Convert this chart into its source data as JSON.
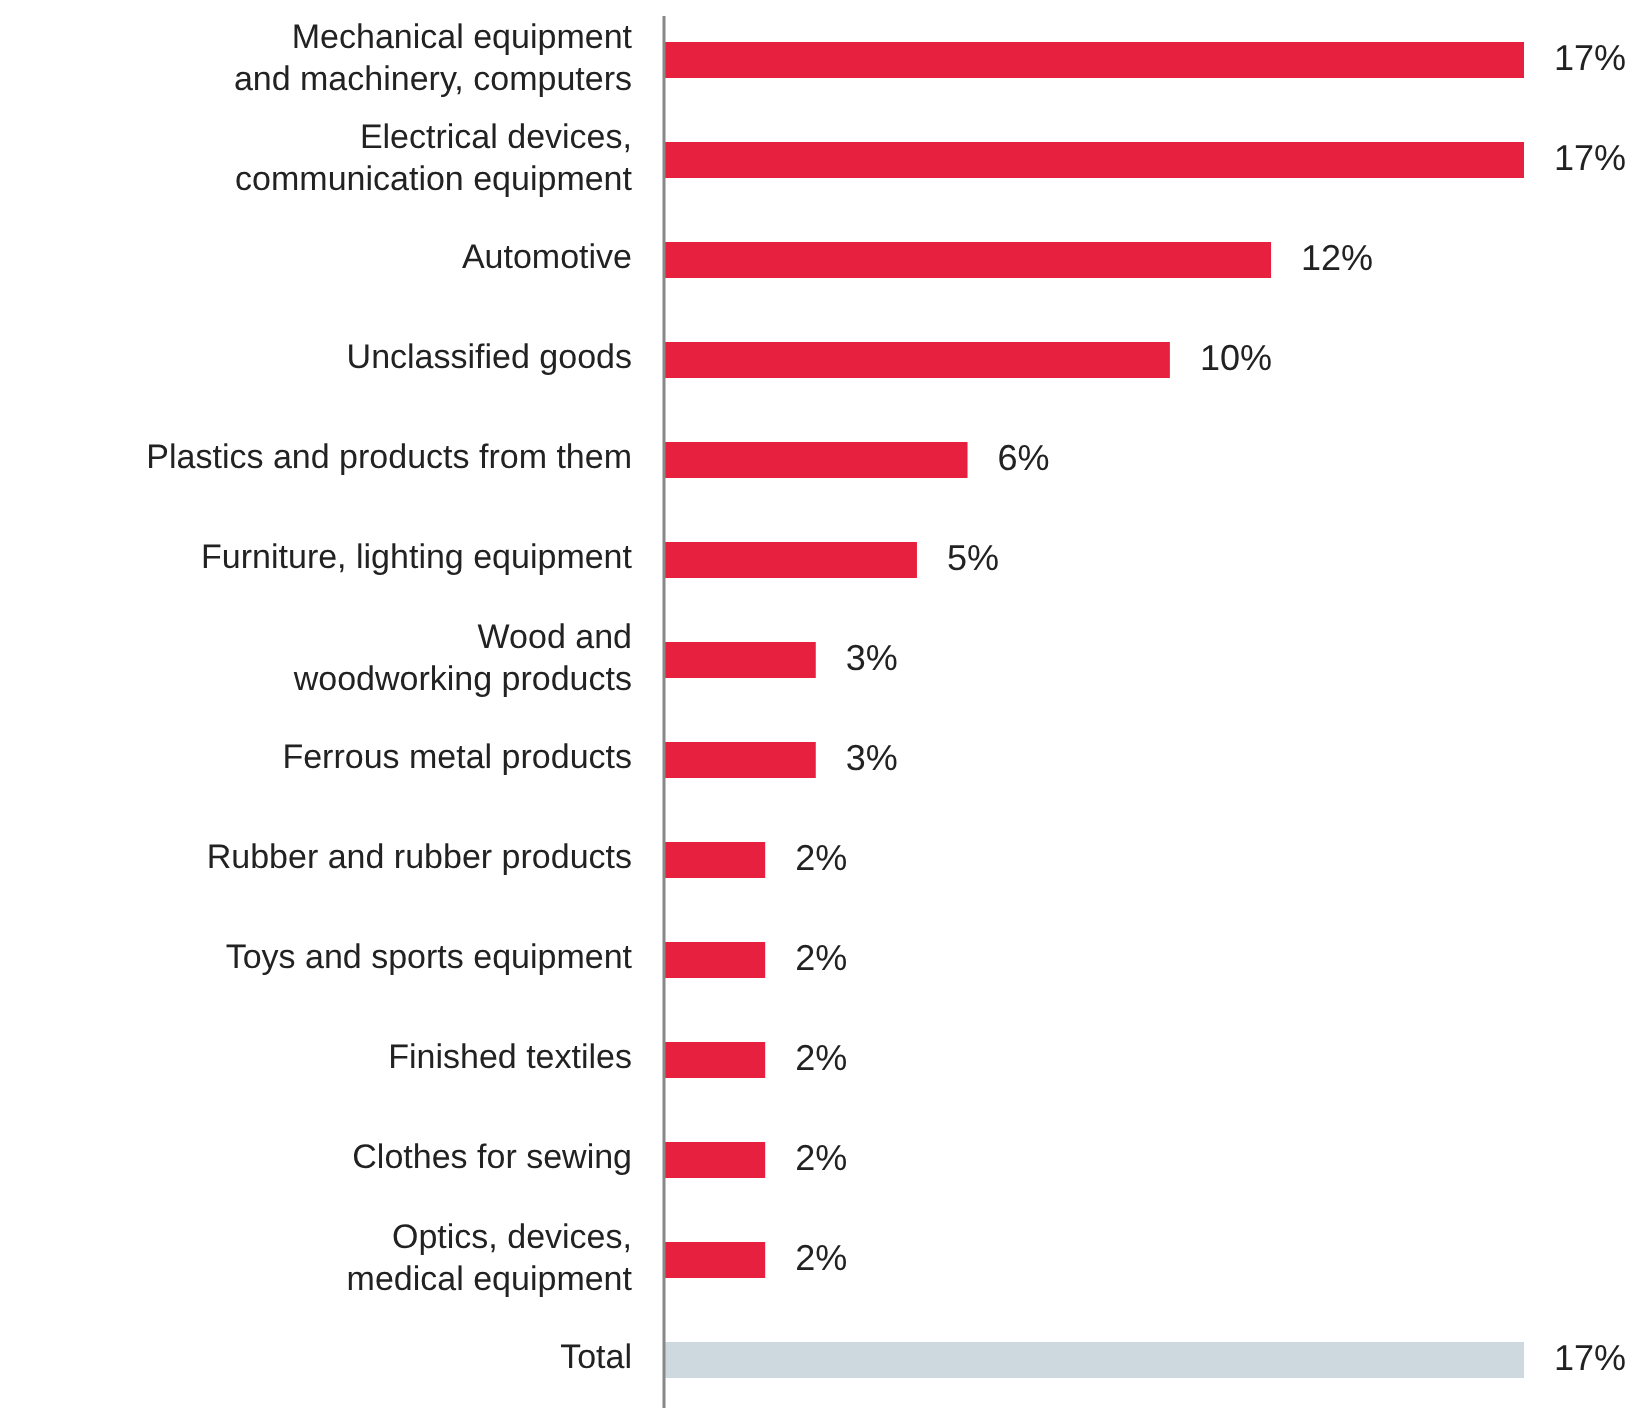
{
  "chart_data": {
    "type": "bar",
    "orientation": "horizontal",
    "value_labels": [
      "17%",
      "17%",
      "12%",
      "10%",
      "6%",
      "5%",
      "3%",
      "3%",
      "2%",
      "2%",
      "2%",
      "2%",
      "2%",
      "17%"
    ],
    "categories": [
      "Mechanical equipment\nand machinery, computers",
      "Electrical devices,\ncommunication equipment",
      "Automotive",
      "Unclassified goods",
      "Plastics and products from them",
      "Furniture, lighting equipment",
      "Wood and\nwoodworking products",
      "Ferrous metal products",
      "Rubber and rubber products",
      "Toys and sports equipment",
      "Finished textiles",
      "Clothes for sewing",
      "Optics, devices,\nmedical equipment",
      "Total"
    ],
    "values": [
      17,
      17,
      12,
      10,
      6,
      5,
      3,
      3,
      2,
      2,
      2,
      2,
      2,
      17
    ],
    "colors": [
      "#e8203f",
      "#e8203f",
      "#e8203f",
      "#e8203f",
      "#e8203f",
      "#e8203f",
      "#e8203f",
      "#e8203f",
      "#e8203f",
      "#e8203f",
      "#e8203f",
      "#e8203f",
      "#e8203f",
      "#cdd8df"
    ]
  }
}
